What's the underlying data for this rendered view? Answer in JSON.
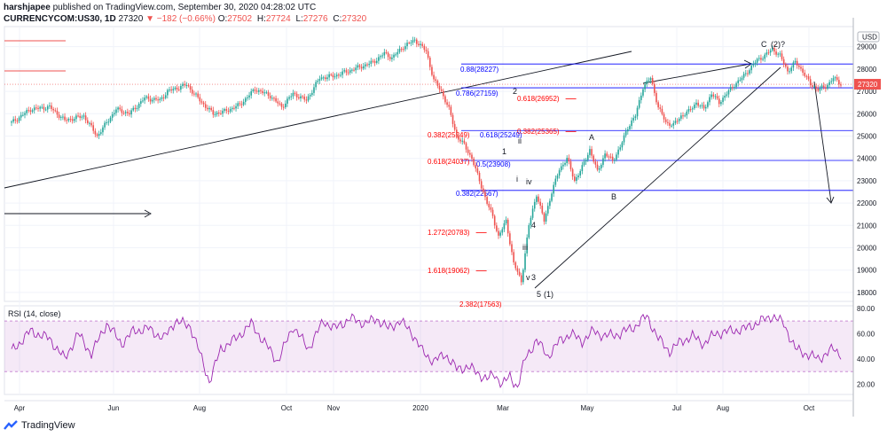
{
  "header": {
    "publisher": "harshjapee",
    "published_text": "published on TradingView.com, September 30, 2020 04:28:02 UTC",
    "symbol": "CURRENCYCOM:US30, 1D",
    "last": "27320",
    "change": "▼ −182 (−0.66%)",
    "open_label": "O:",
    "open": "27502",
    "high_label": "H:",
    "high": "27724",
    "low_label": "L:",
    "low": "27276",
    "close_label": "C:",
    "close": "27320"
  },
  "footer": {
    "brand": "TradingView"
  },
  "colors": {
    "up": "#26a69a",
    "down": "#ef5350",
    "fib_blue": "#0000ff",
    "fib_red": "#ff0000",
    "rsi": "#9c27b0"
  },
  "chart_data": {
    "type": "candlestick",
    "currency": "USD",
    "y_ticks": [
      18000,
      19000,
      20000,
      21000,
      22000,
      23000,
      24000,
      25000,
      26000,
      27000,
      28000,
      29000
    ],
    "ylim": [
      17600,
      29900
    ],
    "last_price_label": "27320",
    "x_labels": [
      "Apr",
      "Jun",
      "Aug",
      "Oct",
      "Nov",
      "2020",
      "Mar",
      "May",
      "Jul",
      "Aug",
      "Oct"
    ],
    "price_anchors": [
      [
        0,
        25600
      ],
      [
        10,
        26200
      ],
      [
        20,
        26300
      ],
      [
        28,
        25700
      ],
      [
        38,
        25900
      ],
      [
        45,
        25000
      ],
      [
        55,
        26200
      ],
      [
        62,
        26000
      ],
      [
        70,
        26700
      ],
      [
        78,
        26600
      ],
      [
        82,
        27000
      ],
      [
        92,
        27300
      ],
      [
        100,
        26500
      ],
      [
        106,
        26000
      ],
      [
        112,
        26100
      ],
      [
        120,
        26400
      ],
      [
        128,
        27100
      ],
      [
        136,
        26800
      ],
      [
        142,
        26300
      ],
      [
        148,
        26900
      ],
      [
        155,
        26600
      ],
      [
        162,
        27600
      ],
      [
        170,
        27700
      ],
      [
        180,
        28000
      ],
      [
        190,
        28300
      ],
      [
        196,
        28700
      ],
      [
        200,
        28500
      ],
      [
        206,
        29000
      ],
      [
        212,
        29300
      ],
      [
        218,
        28800
      ],
      [
        222,
        27500
      ],
      [
        226,
        27000
      ],
      [
        230,
        26200
      ],
      [
        234,
        25000
      ],
      [
        238,
        24600
      ],
      [
        242,
        24000
      ],
      [
        246,
        23000
      ],
      [
        250,
        22000
      ],
      [
        253,
        21400
      ],
      [
        256,
        20500
      ],
      [
        260,
        21200
      ],
      [
        264,
        19300
      ],
      [
        268,
        18500
      ],
      [
        272,
        21000
      ],
      [
        276,
        22400
      ],
      [
        280,
        21200
      ],
      [
        284,
        22500
      ],
      [
        288,
        23500
      ],
      [
        292,
        24000
      ],
      [
        296,
        23000
      ],
      [
        300,
        23600
      ],
      [
        304,
        24400
      ],
      [
        308,
        23400
      ],
      [
        312,
        24200
      ],
      [
        316,
        23900
      ],
      [
        320,
        24500
      ],
      [
        324,
        25400
      ],
      [
        328,
        25900
      ],
      [
        332,
        27200
      ],
      [
        336,
        27600
      ],
      [
        340,
        26300
      ],
      [
        344,
        25600
      ],
      [
        348,
        25500
      ],
      [
        352,
        25900
      ],
      [
        356,
        26100
      ],
      [
        360,
        26500
      ],
      [
        364,
        26200
      ],
      [
        368,
        26900
      ],
      [
        372,
        26500
      ],
      [
        376,
        26900
      ],
      [
        380,
        27300
      ],
      [
        384,
        27600
      ],
      [
        388,
        28000
      ],
      [
        392,
        28400
      ],
      [
        396,
        28600
      ],
      [
        400,
        28900
      ],
      [
        404,
        28600
      ],
      [
        408,
        27900
      ],
      [
        412,
        28300
      ],
      [
        416,
        27900
      ],
      [
        420,
        27300
      ],
      [
        424,
        27100
      ],
      [
        428,
        27200
      ],
      [
        432,
        27600
      ],
      [
        436,
        27320
      ]
    ],
    "fib_levels": [
      {
        "label": "0.88(28227)",
        "value": 28227,
        "color": "blue"
      },
      {
        "label": "0.786(27159)",
        "value": 27159,
        "color": "blue"
      },
      {
        "label": "0.618(26952)",
        "value": 26952,
        "color": "red"
      },
      {
        "label": "0.382(25365)",
        "value": 25365,
        "color": "red"
      },
      {
        "label": "0.618(25249)",
        "value": 25249,
        "color": "blue"
      },
      {
        "label": "0.382(25249)",
        "value": 25249,
        "color": "red"
      },
      {
        "label": "0.5(23908)",
        "value": 23908,
        "color": "blue"
      },
      {
        "label": "0.618(24037)",
        "value": 24037,
        "color": "red"
      },
      {
        "label": "0.382(22567)",
        "value": 22567,
        "color": "blue"
      },
      {
        "label": "1.272(20783)",
        "value": 20783,
        "color": "red"
      },
      {
        "label": "1.618(19062)",
        "value": 19062,
        "color": "red"
      },
      {
        "label": "2.382(17563)",
        "value": 17563,
        "color": "red"
      }
    ],
    "wave_labels": [
      "1",
      "2",
      "i",
      "ii",
      "iii",
      "iv",
      "v",
      "3",
      "4",
      "5",
      "(1)",
      "A",
      "B",
      "C",
      "(2)?"
    ],
    "rsi": {
      "title": "RSI (14, close)",
      "y_ticks": [
        20.0,
        40.0,
        60.0,
        80.0
      ],
      "levels": [
        30,
        70
      ],
      "ylim": [
        12,
        82
      ],
      "anchors": [
        [
          0,
          46
        ],
        [
          10,
          62
        ],
        [
          20,
          56
        ],
        [
          28,
          40
        ],
        [
          35,
          60
        ],
        [
          42,
          44
        ],
        [
          50,
          68
        ],
        [
          58,
          52
        ],
        [
          64,
          62
        ],
        [
          72,
          64
        ],
        [
          80,
          56
        ],
        [
          86,
          70
        ],
        [
          94,
          66
        ],
        [
          100,
          40
        ],
        [
          104,
          22
        ],
        [
          110,
          48
        ],
        [
          118,
          56
        ],
        [
          126,
          68
        ],
        [
          132,
          55
        ],
        [
          140,
          38
        ],
        [
          148,
          66
        ],
        [
          156,
          48
        ],
        [
          164,
          70
        ],
        [
          170,
          64
        ],
        [
          178,
          72
        ],
        [
          186,
          68
        ],
        [
          192,
          72
        ],
        [
          198,
          64
        ],
        [
          204,
          70
        ],
        [
          210,
          62
        ],
        [
          216,
          46
        ],
        [
          222,
          38
        ],
        [
          228,
          44
        ],
        [
          234,
          32
        ],
        [
          240,
          34
        ],
        [
          246,
          28
        ],
        [
          250,
          24
        ],
        [
          254,
          28
        ],
        [
          258,
          20
        ],
        [
          262,
          26
        ],
        [
          266,
          18
        ],
        [
          270,
          40
        ],
        [
          276,
          55
        ],
        [
          282,
          42
        ],
        [
          288,
          54
        ],
        [
          294,
          60
        ],
        [
          300,
          54
        ],
        [
          306,
          62
        ],
        [
          312,
          58
        ],
        [
          320,
          60
        ],
        [
          328,
          66
        ],
        [
          334,
          74
        ],
        [
          340,
          56
        ],
        [
          346,
          46
        ],
        [
          352,
          54
        ],
        [
          358,
          58
        ],
        [
          364,
          52
        ],
        [
          370,
          60
        ],
        [
          378,
          62
        ],
        [
          386,
          64
        ],
        [
          394,
          70
        ],
        [
          400,
          74
        ],
        [
          406,
          68
        ],
        [
          412,
          48
        ],
        [
          418,
          44
        ],
        [
          424,
          40
        ],
        [
          428,
          44
        ],
        [
          432,
          48
        ],
        [
          436,
          44
        ]
      ]
    }
  }
}
